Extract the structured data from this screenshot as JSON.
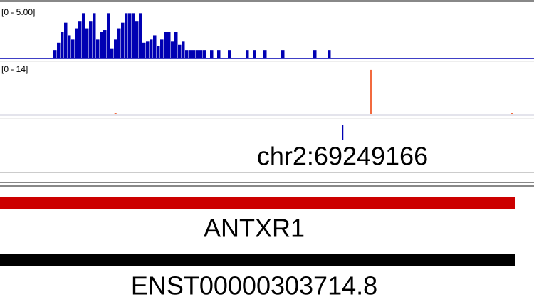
{
  "tracks": [
    {
      "range_label": "[0 - 5.00]",
      "ylim": [
        0,
        5
      ],
      "color": "#0000b3",
      "values": [
        0,
        0,
        0,
        0,
        0,
        0,
        0,
        0,
        0,
        0,
        0,
        0,
        0,
        0,
        0,
        0.8,
        1.5,
        2.5,
        3.4,
        2.2,
        1.8,
        2.8,
        3.5,
        4.3,
        2.8,
        3.5,
        4.3,
        1.8,
        2.5,
        2.7,
        4.3,
        0.9,
        1.8,
        2.8,
        3.4,
        4.3,
        4.3,
        4.3,
        3.5,
        4.3,
        1.5,
        1.6,
        1.8,
        2.2,
        1.2,
        1.8,
        2.5,
        2.5,
        1.6,
        2.5,
        1.3,
        1.6,
        0.8,
        0.8,
        0.8,
        0.8,
        0.8,
        0.8,
        0,
        0.8,
        0,
        0.8,
        0,
        0,
        0.8,
        0,
        0,
        0,
        0,
        0.8,
        0,
        0.8,
        0,
        0,
        0.8,
        0,
        0,
        0,
        0,
        0.8,
        0,
        0,
        0,
        0,
        0,
        0,
        0,
        0,
        0.8,
        0,
        0,
        0,
        0.8,
        0,
        0,
        0,
        0,
        0,
        0,
        0,
        0,
        0,
        0,
        0,
        0,
        0,
        0,
        0,
        0,
        0,
        0,
        0,
        0,
        0,
        0,
        0,
        0,
        0,
        0,
        0,
        0,
        0,
        0,
        0,
        0,
        0,
        0,
        0,
        0,
        0,
        0,
        0,
        0,
        0,
        0,
        0,
        0,
        0,
        0,
        0,
        0,
        0,
        0,
        0,
        0,
        0,
        0,
        0,
        0,
        0
      ]
    },
    {
      "range_label": "[0 - 14]",
      "ylim": [
        0,
        14
      ],
      "color": "#f26a3f",
      "values": [
        0,
        0,
        0,
        0,
        0,
        0,
        0,
        0,
        0,
        0,
        0,
        0,
        0,
        0,
        0,
        0,
        0,
        0,
        0,
        0,
        0,
        0,
        0,
        0,
        0,
        0,
        0,
        0,
        0,
        0,
        0.3,
        0,
        0,
        0,
        0,
        0,
        0,
        0,
        0,
        0,
        0,
        0,
        0,
        0,
        0,
        0,
        0,
        0,
        0,
        0,
        0,
        0,
        0,
        0,
        0,
        0,
        0,
        0,
        0,
        0,
        0,
        0,
        0,
        0,
        0,
        0,
        0,
        0,
        0,
        0,
        0,
        0,
        0,
        0,
        0,
        0,
        0,
        0,
        0,
        0,
        0,
        0,
        0,
        0,
        0,
        0,
        0,
        0,
        0,
        0,
        0,
        0,
        0,
        0,
        0,
        0,
        0,
        13.8,
        0,
        0,
        0,
        0,
        0,
        0,
        0,
        0,
        0,
        0,
        0,
        0,
        0,
        0,
        0,
        0,
        0,
        0,
        0,
        0,
        0,
        0,
        0,
        0,
        0,
        0,
        0,
        0,
        0,
        0,
        0,
        0,
        0,
        0,
        0,
        0,
        0.4,
        0,
        0,
        0,
        0,
        0
      ]
    }
  ],
  "locus": "chr2:69249166",
  "genes": [
    {
      "label": "ANTXR1",
      "color": "#cc0000"
    },
    {
      "label": "ENST00000303714.8",
      "color": "#000000"
    }
  ]
}
